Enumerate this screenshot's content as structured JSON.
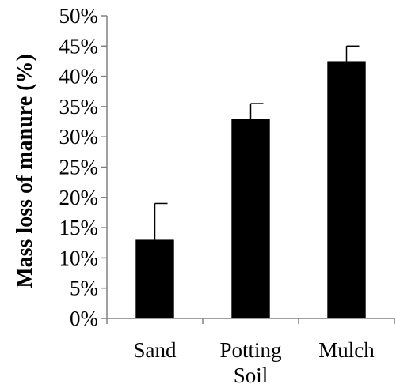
{
  "chart_data": {
    "type": "bar",
    "categories": [
      [
        "Sand"
      ],
      [
        "Potting",
        "Soil"
      ],
      [
        "Mulch"
      ]
    ],
    "values": [
      13,
      33,
      42.5
    ],
    "error": [
      6,
      2.5,
      2.5
    ],
    "ylabel": "Mass loss of manure (%)",
    "ylim": [
      0,
      50
    ],
    "yticks": [
      0,
      5,
      10,
      15,
      20,
      25,
      30,
      35,
      40,
      45,
      50
    ],
    "ytick_suffix": "%",
    "grid": false,
    "legend": "none",
    "bar_color": "#000000",
    "axis_color": "#808080"
  }
}
